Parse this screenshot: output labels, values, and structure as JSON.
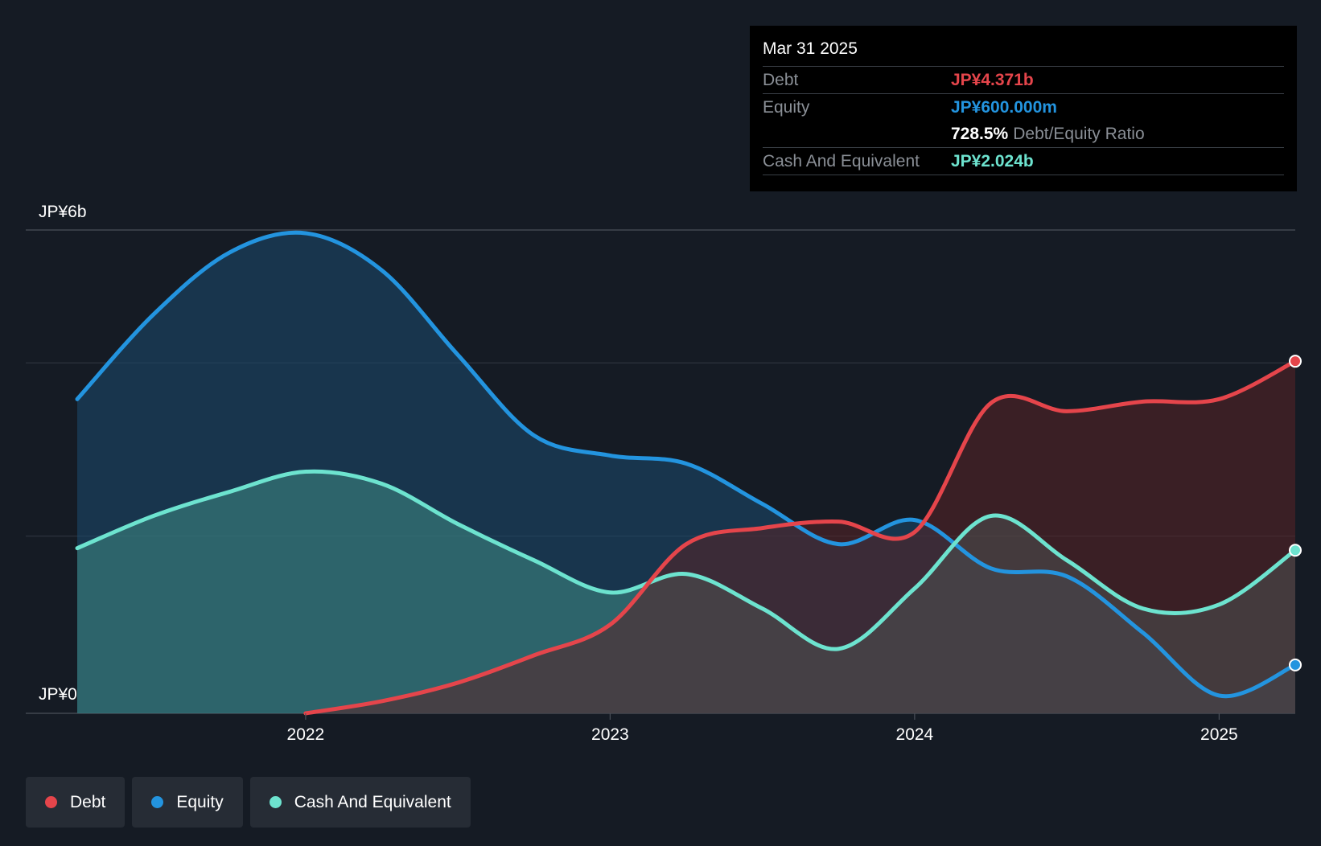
{
  "chart_data": {
    "type": "area",
    "y_axis": {
      "min_label": "JP¥0",
      "max_label": "JP¥6b",
      "min": 0,
      "max": 6
    },
    "x_range": [
      2021.25,
      2025.25
    ],
    "x_ticks": [
      {
        "value": 2022,
        "label": "2022"
      },
      {
        "value": 2023,
        "label": "2023"
      },
      {
        "value": 2024,
        "label": "2024"
      },
      {
        "value": 2025,
        "label": "2025"
      }
    ],
    "series": [
      {
        "name": "Equity",
        "color": "#2394df",
        "fill": "#1c4a70",
        "points": [
          [
            2021.25,
            3.9
          ],
          [
            2021.5,
            4.95
          ],
          [
            2021.75,
            5.72
          ],
          [
            2022.0,
            5.96
          ],
          [
            2022.25,
            5.5
          ],
          [
            2022.5,
            4.45
          ],
          [
            2022.75,
            3.45
          ],
          [
            2023.0,
            3.2
          ],
          [
            2023.25,
            3.1
          ],
          [
            2023.5,
            2.6
          ],
          [
            2023.75,
            2.1
          ],
          [
            2024.0,
            2.4
          ],
          [
            2024.25,
            1.8
          ],
          [
            2024.5,
            1.7
          ],
          [
            2024.75,
            1.0
          ],
          [
            2025.0,
            0.22
          ],
          [
            2025.25,
            0.6
          ]
        ]
      },
      {
        "name": "Cash And Equivalent",
        "color": "#6de3cf",
        "fill": "#3f8a85",
        "points": [
          [
            2021.25,
            2.05
          ],
          [
            2021.5,
            2.45
          ],
          [
            2021.75,
            2.75
          ],
          [
            2022.0,
            3.0
          ],
          [
            2022.25,
            2.85
          ],
          [
            2022.5,
            2.35
          ],
          [
            2022.75,
            1.9
          ],
          [
            2023.0,
            1.5
          ],
          [
            2023.25,
            1.73
          ],
          [
            2023.5,
            1.3
          ],
          [
            2023.75,
            0.8
          ],
          [
            2024.0,
            1.55
          ],
          [
            2024.25,
            2.45
          ],
          [
            2024.5,
            1.9
          ],
          [
            2024.75,
            1.3
          ],
          [
            2025.0,
            1.35
          ],
          [
            2025.25,
            2.024
          ]
        ]
      },
      {
        "name": "Debt",
        "color": "#e5454b",
        "fill": "#5a2227",
        "points": [
          [
            2022.0,
            0.0
          ],
          [
            2022.25,
            0.15
          ],
          [
            2022.5,
            0.38
          ],
          [
            2022.75,
            0.72
          ],
          [
            2023.0,
            1.1
          ],
          [
            2023.25,
            2.1
          ],
          [
            2023.5,
            2.3
          ],
          [
            2023.75,
            2.38
          ],
          [
            2024.0,
            2.25
          ],
          [
            2024.25,
            3.85
          ],
          [
            2024.5,
            3.75
          ],
          [
            2024.75,
            3.87
          ],
          [
            2025.0,
            3.9
          ],
          [
            2025.25,
            4.371
          ]
        ]
      }
    ],
    "tooltip": {
      "date": "Mar 31 2025",
      "rows": [
        {
          "label": "Debt",
          "value": "JP¥4.371b",
          "color": "#e5454b"
        },
        {
          "label": "Equity",
          "value": "JP¥600.000m",
          "color": "#2394df"
        },
        {
          "label": "",
          "value": "728.5%",
          "suffix": "Debt/Equity Ratio",
          "color": "#ffffff"
        },
        {
          "label": "Cash And Equivalent",
          "value": "JP¥2.024b",
          "color": "#6de3cf"
        }
      ]
    },
    "legend": [
      {
        "name": "Debt",
        "color": "#e5454b"
      },
      {
        "name": "Equity",
        "color": "#2394df"
      },
      {
        "name": "Cash And Equivalent",
        "color": "#6de3cf"
      }
    ]
  }
}
